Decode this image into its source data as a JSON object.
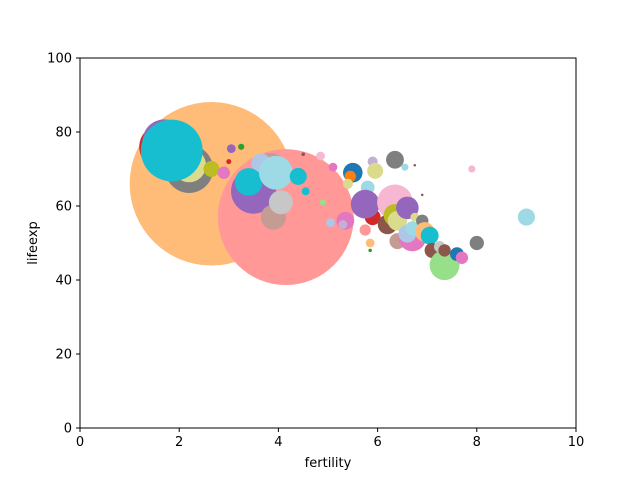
{
  "chart_data": {
    "type": "scatter",
    "xlabel": "fertility",
    "ylabel": "lifeexp",
    "xlim": [
      0,
      10
    ],
    "ylim": [
      0,
      100
    ],
    "xticks": [
      0,
      2,
      4,
      6,
      8,
      10
    ],
    "yticks": [
      0,
      20,
      40,
      60,
      80,
      100
    ],
    "grid": false,
    "legend": "none",
    "points": [
      {
        "x": 2.65,
        "y": 66,
        "size": 21000,
        "color": "#ffbb78"
      },
      {
        "x": 4.15,
        "y": 57,
        "size": 14500,
        "color": "#ff9896"
      },
      {
        "x": 1.65,
        "y": 76,
        "size": 1600,
        "color": "#d62728"
      },
      {
        "x": 1.7,
        "y": 77.5,
        "size": 1500,
        "color": "#9467bd"
      },
      {
        "x": 2.2,
        "y": 70,
        "size": 1800,
        "color": "#7f7f7f"
      },
      {
        "x": 2.2,
        "y": 71,
        "size": 900,
        "color": "#dbdb8d"
      },
      {
        "x": 1.85,
        "y": 75,
        "size": 3000,
        "color": "#17becf"
      },
      {
        "x": 2.65,
        "y": 70,
        "size": 200,
        "color": "#bcbd22"
      },
      {
        "x": 2.9,
        "y": 69,
        "size": 120,
        "color": "#e377c2"
      },
      {
        "x": 3.05,
        "y": 75.5,
        "size": 60,
        "color": "#9467bd"
      },
      {
        "x": 3.25,
        "y": 76,
        "size": 30,
        "color": "#2ca02c"
      },
      {
        "x": 3.0,
        "y": 72,
        "size": 20,
        "color": "#d62728"
      },
      {
        "x": 3.5,
        "y": 64,
        "size": 1600,
        "color": "#9467bd"
      },
      {
        "x": 3.85,
        "y": 70,
        "size": 800,
        "color": "#c49c94"
      },
      {
        "x": 3.65,
        "y": 71.5,
        "size": 300,
        "color": "#aec7e8"
      },
      {
        "x": 3.4,
        "y": 66.5,
        "size": 600,
        "color": "#17becf"
      },
      {
        "x": 3.9,
        "y": 57,
        "size": 500,
        "color": "#c49c94"
      },
      {
        "x": 4.05,
        "y": 61,
        "size": 450,
        "color": "#c7c7c7"
      },
      {
        "x": 3.95,
        "y": 69,
        "size": 900,
        "color": "#9edae5"
      },
      {
        "x": 4.4,
        "y": 68,
        "size": 230,
        "color": "#17becf"
      },
      {
        "x": 4.55,
        "y": 64,
        "size": 50,
        "color": "#17becf"
      },
      {
        "x": 4.5,
        "y": 74,
        "size": 10,
        "color": "#8c564b"
      },
      {
        "x": 4.85,
        "y": 73.5,
        "size": 60,
        "color": "#f7b6d2"
      },
      {
        "x": 5.1,
        "y": 70.5,
        "size": 60,
        "color": "#e377c2"
      },
      {
        "x": 4.9,
        "y": 61,
        "size": 30,
        "color": "#98df8a"
      },
      {
        "x": 5.5,
        "y": 69,
        "size": 300,
        "color": "#1f77b4"
      },
      {
        "x": 5.45,
        "y": 68,
        "size": 100,
        "color": "#ff7f0e"
      },
      {
        "x": 5.4,
        "y": 66,
        "size": 80,
        "color": "#dbdb8d"
      },
      {
        "x": 5.05,
        "y": 55.5,
        "size": 60,
        "color": "#aec7e8"
      },
      {
        "x": 5.35,
        "y": 56,
        "size": 250,
        "color": "#e377c2"
      },
      {
        "x": 5.3,
        "y": 55,
        "size": 60,
        "color": "#c5b0d5"
      },
      {
        "x": 5.6,
        "y": 61,
        "size": 30,
        "color": "#f7b6d2"
      },
      {
        "x": 5.8,
        "y": 65,
        "size": 150,
        "color": "#9edae5"
      },
      {
        "x": 5.75,
        "y": 53.5,
        "size": 100,
        "color": "#ff9896"
      },
      {
        "x": 5.85,
        "y": 50,
        "size": 60,
        "color": "#ffbb78"
      },
      {
        "x": 5.85,
        "y": 48,
        "size": 10,
        "color": "#2ca02c"
      },
      {
        "x": 5.9,
        "y": 57,
        "size": 200,
        "color": "#d62728"
      },
      {
        "x": 5.75,
        "y": 60.5,
        "size": 650,
        "color": "#9467bd"
      },
      {
        "x": 5.9,
        "y": 72,
        "size": 80,
        "color": "#c5b0d5"
      },
      {
        "x": 5.95,
        "y": 69.5,
        "size": 200,
        "color": "#dbdb8d"
      },
      {
        "x": 6.35,
        "y": 72.5,
        "size": 250,
        "color": "#7f7f7f"
      },
      {
        "x": 6.2,
        "y": 55,
        "size": 300,
        "color": "#8c564b"
      },
      {
        "x": 6.35,
        "y": 61,
        "size": 1000,
        "color": "#f7b6d2"
      },
      {
        "x": 6.35,
        "y": 57.5,
        "size": 400,
        "color": "#bcbd22"
      },
      {
        "x": 6.4,
        "y": 56,
        "size": 300,
        "color": "#dbdb8d"
      },
      {
        "x": 6.6,
        "y": 59.5,
        "size": 400,
        "color": "#9467bd"
      },
      {
        "x": 6.4,
        "y": 50.5,
        "size": 200,
        "color": "#c49c94"
      },
      {
        "x": 6.7,
        "y": 51.5,
        "size": 600,
        "color": "#e377c2"
      },
      {
        "x": 6.55,
        "y": 70.5,
        "size": 40,
        "color": "#9edae5"
      },
      {
        "x": 6.6,
        "y": 52.5,
        "size": 250,
        "color": "#aec7e8"
      },
      {
        "x": 6.7,
        "y": 54,
        "size": 150,
        "color": "#9edae5"
      },
      {
        "x": 6.75,
        "y": 57,
        "size": 60,
        "color": "#dbdb8d"
      },
      {
        "x": 6.75,
        "y": 71,
        "size": 5,
        "color": "#8c564b"
      },
      {
        "x": 6.9,
        "y": 56,
        "size": 120,
        "color": "#7f7f7f"
      },
      {
        "x": 6.9,
        "y": 63,
        "size": 5,
        "color": "#8c564b"
      },
      {
        "x": 6.95,
        "y": 53,
        "size": 300,
        "color": "#ffbb78"
      },
      {
        "x": 7.05,
        "y": 52,
        "size": 250,
        "color": "#17becf"
      },
      {
        "x": 7.1,
        "y": 48,
        "size": 180,
        "color": "#8c564b"
      },
      {
        "x": 7.25,
        "y": 49,
        "size": 100,
        "color": "#c7c7c7"
      },
      {
        "x": 7.35,
        "y": 44,
        "size": 700,
        "color": "#98df8a"
      },
      {
        "x": 7.35,
        "y": 48,
        "size": 120,
        "color": "#8c564b"
      },
      {
        "x": 7.6,
        "y": 47,
        "size": 150,
        "color": "#1f77b4"
      },
      {
        "x": 7.7,
        "y": 46,
        "size": 120,
        "color": "#e377c2"
      },
      {
        "x": 7.9,
        "y": 70,
        "size": 40,
        "color": "#f7b6d2"
      },
      {
        "x": 8.0,
        "y": 50,
        "size": 160,
        "color": "#7f7f7f"
      },
      {
        "x": 9.0,
        "y": 57,
        "size": 230,
        "color": "#9edae5"
      }
    ]
  }
}
